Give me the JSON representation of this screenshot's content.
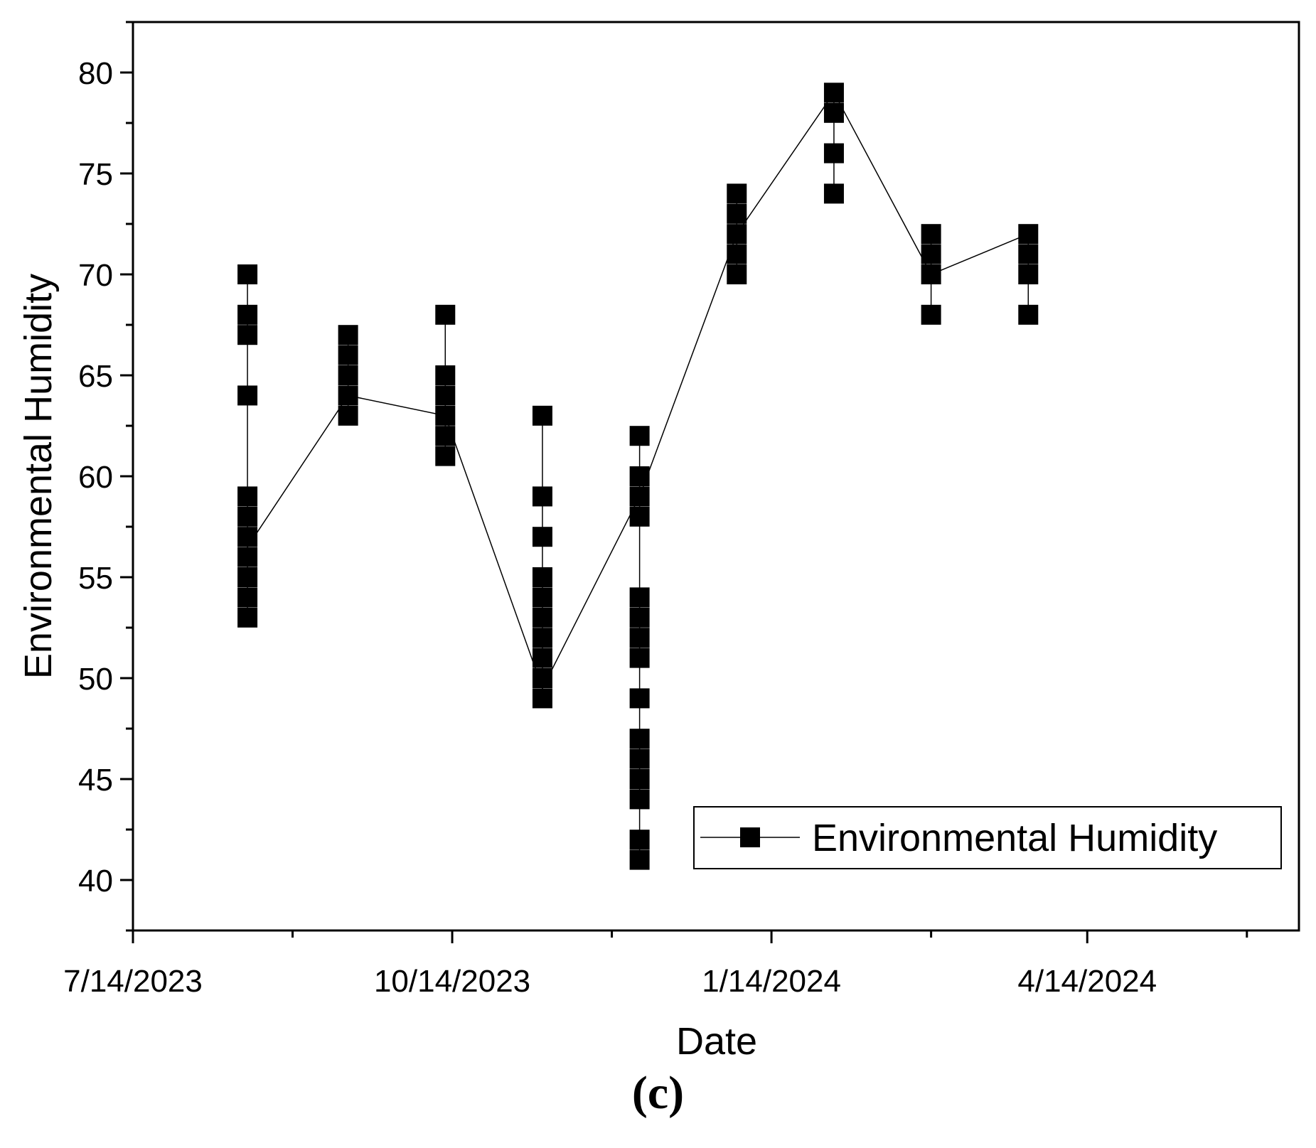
{
  "chart_data": {
    "type": "scatter",
    "title": "",
    "xlabel": "Date",
    "ylabel": "Environmental Humidity",
    "x_tick_labels": [
      "7/14/2023",
      "10/14/2023",
      "1/14/2024",
      "4/14/2024"
    ],
    "xlim": [
      "7/14/2023",
      "6/14/2024"
    ],
    "y_ticks": [
      40,
      45,
      50,
      55,
      60,
      65,
      70,
      75,
      80
    ],
    "ylim": [
      37.5,
      82.5
    ],
    "grid": false,
    "legend": {
      "position": "bottom-right",
      "entries": [
        "Environmental Humidity"
      ]
    },
    "series": [
      {
        "name": "Environmental Humidity",
        "marker": "square",
        "line": true,
        "groups": [
          {
            "date": "8/16/2023",
            "values": [
              70,
              68,
              67,
              64,
              59,
              58,
              57,
              56,
              55,
              54,
              53
            ],
            "mean": 56.5
          },
          {
            "date": "9/14/2023",
            "values": [
              67,
              66,
              65,
              64,
              63
            ],
            "mean": 64
          },
          {
            "date": "10/12/2023",
            "values": [
              68,
              65,
              64,
              63,
              62,
              61
            ],
            "mean": 63
          },
          {
            "date": "11/9/2023",
            "values": [
              63,
              59,
              57,
              55,
              54,
              53,
              52,
              51,
              50,
              49
            ],
            "mean": 49.5
          },
          {
            "date": "12/7/2023",
            "values": [
              62,
              60,
              59,
              58,
              54,
              53,
              52,
              51,
              49,
              47,
              46,
              45,
              44,
              42,
              41
            ],
            "mean": 59
          },
          {
            "date": "1/4/2024",
            "values": [
              74,
              73,
              72,
              71,
              70
            ],
            "mean": 72
          },
          {
            "date": "2/1/2024",
            "values": [
              79,
              78,
              76,
              74
            ],
            "mean": 79
          },
          {
            "date": "2/29/2024",
            "values": [
              72,
              71,
              70,
              68
            ],
            "mean": 70
          },
          {
            "date": "3/28/2024",
            "values": [
              72,
              71,
              70,
              68
            ],
            "mean": 72
          }
        ]
      }
    ]
  },
  "panel_label": "(c)",
  "colors": {
    "marker": "#000000",
    "line": "#000000",
    "axis": "#000000",
    "background": "#ffffff"
  }
}
